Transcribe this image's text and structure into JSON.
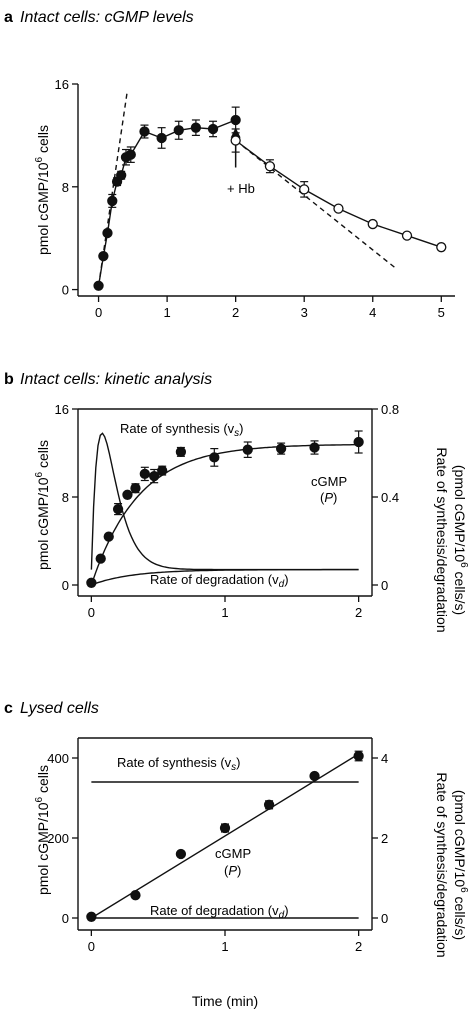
{
  "chart_data": [
    {
      "panel_letter": "a",
      "title": "Intact cells: cGMP levels",
      "type": "line",
      "ylabel": "pmol cGMP/10",
      "ylabel_sup": "6",
      "ylabel_tail": " cells",
      "xlim": [
        -0.3,
        5.2
      ],
      "ylim": [
        -0.5,
        16
      ],
      "xticks": [
        "0",
        "1",
        "2",
        "3",
        "4",
        "5"
      ],
      "yticks": [
        "0",
        "8",
        "16"
      ],
      "series": [
        {
          "marker": "filled",
          "x": [
            0,
            0.07,
            0.13,
            0.2,
            0.27,
            0.33,
            0.4,
            0.47,
            0.67,
            0.92,
            1.17,
            1.42,
            1.67,
            2.0
          ],
          "y": [
            0.3,
            2.6,
            4.4,
            6.9,
            8.4,
            8.9,
            10.3,
            10.5,
            12.3,
            11.8,
            12.4,
            12.6,
            12.5,
            13.2
          ],
          "err": [
            0,
            0,
            0,
            0.5,
            0.3,
            0.3,
            0.6,
            0.6,
            0.5,
            0.8,
            0.7,
            0.6,
            0.6,
            1.0
          ]
        },
        {
          "marker": "open",
          "x": [
            2.0,
            2.5,
            3.0,
            3.5,
            4.0,
            4.5,
            5.0
          ],
          "y": [
            11.6,
            9.6,
            7.8,
            6.3,
            5.1,
            4.2,
            3.3
          ],
          "err": [
            0.9,
            0.5,
            0.6,
            0,
            0,
            0,
            0
          ]
        }
      ],
      "dashed_lines": [
        {
          "x": [
            0,
            0.42
          ],
          "y": [
            0.3,
            15.5
          ]
        },
        {
          "x": [
            2.0,
            4.35
          ],
          "y": [
            11.6,
            1.6
          ]
        }
      ],
      "annotation": {
        "text": "+ Hb",
        "x": 2.0,
        "y": 9.5
      }
    },
    {
      "panel_letter": "b",
      "title": "Intact cells: kinetic analysis",
      "type": "line",
      "ylabel": "pmol cGMP/10",
      "ylabel_sup": "6",
      "ylabel_tail": " cells",
      "y2label_line1": "Rate of synthesis/degradation",
      "y2label_line2": "(pmol cGMP/10",
      "y2label_sup": "6",
      "y2label_tail": " cells/s)",
      "xlim": [
        -0.1,
        2.1
      ],
      "ylim": [
        -1,
        16
      ],
      "y2lim": [
        -0.05,
        0.8
      ],
      "xticks": [
        "0",
        "1",
        "2"
      ],
      "yticks": [
        "0",
        "8",
        "16"
      ],
      "y2ticks": [
        "0",
        "0.4",
        "0.8"
      ],
      "points": {
        "x": [
          0,
          0.07,
          0.13,
          0.2,
          0.27,
          0.33,
          0.4,
          0.47,
          0.53,
          0.67,
          0.92,
          1.17,
          1.42,
          1.67,
          2.0
        ],
        "y": [
          0.2,
          2.4,
          4.4,
          6.9,
          8.2,
          8.8,
          10.1,
          9.9,
          10.4,
          12.1,
          11.6,
          12.3,
          12.4,
          12.5,
          13.0
        ],
        "err": [
          0,
          0,
          0,
          0.5,
          0,
          0.4,
          0.6,
          0.6,
          0.4,
          0.4,
          0.8,
          0.7,
          0.5,
          0.6,
          1.0
        ]
      },
      "labels": {
        "synthesis": "Rate of synthesis (v",
        "synthesis_sub": "s",
        "degradation": "Rate of degradation (v",
        "degradation_sub": "d",
        "close": ")",
        "cgmp": "cGMP",
        "p": "P"
      }
    },
    {
      "panel_letter": "c",
      "title": "Lysed cells",
      "type": "line",
      "ylabel": "pmol cGMP/10",
      "ylabel_sup": "6",
      "ylabel_tail": " cells",
      "y2label_line1": "Rate of synthesis/degradation",
      "y2label_line2": "(pmol cGMP/10",
      "y2label_sup": "6",
      "y2label_tail": " cells/s)",
      "xlabel": "Time (min)",
      "xlim": [
        -0.1,
        2.1
      ],
      "ylim": [
        -30,
        450
      ],
      "y2lim": [
        -0.3,
        4.5
      ],
      "xticks": [
        "0",
        "1",
        "2"
      ],
      "yticks": [
        "0",
        "200",
        "400"
      ],
      "y2ticks": [
        "0",
        "2",
        "4"
      ],
      "points": {
        "x": [
          0,
          0.33,
          0.67,
          1.0,
          1.33,
          1.67,
          2.0
        ],
        "y": [
          3,
          57,
          160,
          225,
          283,
          355,
          405
        ],
        "err": [
          0,
          0,
          0,
          10,
          10,
          0,
          12
        ]
      },
      "fit": {
        "x": [
          0,
          2.0
        ],
        "y": [
          0,
          410
        ]
      },
      "synthesis_rate": 3.4,
      "degradation_rate": 0,
      "labels": {
        "synthesis": "Rate of synthesis (v",
        "synthesis_sub": "s",
        "degradation": "Rate of degradation (v",
        "degradation_sub": "d",
        "close": ")",
        "cgmp": "cGMP",
        "p": "P"
      }
    }
  ]
}
